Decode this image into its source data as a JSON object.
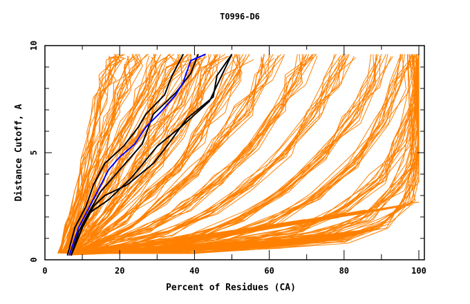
{
  "chart_data": {
    "type": "line",
    "title": "T0996-D6",
    "xlabel": "Percent of Residues (CA)",
    "ylabel": "Distance Cutoff, A",
    "xlim": [
      0,
      100
    ],
    "ylim": [
      0,
      10
    ],
    "x_ticks": [
      "0",
      "20",
      "40",
      "60",
      "80",
      "100"
    ],
    "y_ticks": [
      "0",
      "5",
      "10"
    ],
    "x_tick_values": [
      0,
      20,
      40,
      60,
      80,
      100
    ],
    "y_tick_values": [
      0,
      5,
      10
    ],
    "grid": false,
    "legend": "none",
    "colors": {
      "background_models": "#ff8000",
      "highlight_blue": "#0000ff",
      "highlight_black": "#000000"
    },
    "background_series_description": "Many orange GDT curves (all submitted models) spanning roughly x=4..100 at y from 0.3 to 9.6",
    "background_series": [
      {
        "x": [
          4,
          6,
          9,
          11,
          13,
          15,
          17,
          19,
          20
        ],
        "y": [
          0.3,
          1.5,
          3,
          4.5,
          6,
          7.5,
          8.5,
          9.2,
          9.6
        ]
      },
      {
        "x": [
          5,
          7,
          10,
          13,
          15,
          18,
          21,
          24,
          25
        ],
        "y": [
          0.3,
          1.2,
          2.6,
          4,
          5.2,
          6.7,
          8,
          9.1,
          9.6
        ]
      },
      {
        "x": [
          5,
          8,
          12,
          15,
          18,
          22,
          26,
          29,
          31
        ],
        "y": [
          0.3,
          1.3,
          2.6,
          3.8,
          5,
          6.4,
          7.8,
          9,
          9.6
        ]
      },
      {
        "x": [
          6,
          9,
          14,
          18,
          22,
          26,
          30,
          34,
          36
        ],
        "y": [
          0.3,
          1.1,
          2.4,
          3.6,
          4.9,
          6.2,
          7.6,
          9,
          9.6
        ]
      },
      {
        "x": [
          6,
          10,
          16,
          21,
          26,
          30,
          35,
          39,
          41
        ],
        "y": [
          0.3,
          1.0,
          2.2,
          3.4,
          4.7,
          6,
          7.4,
          8.9,
          9.6
        ]
      },
      {
        "x": [
          6,
          11,
          18,
          24,
          30,
          35,
          40,
          44,
          46
        ],
        "y": [
          0.3,
          0.9,
          2.1,
          3.3,
          4.6,
          5.9,
          7.3,
          8.8,
          9.6
        ]
      },
      {
        "x": [
          7,
          13,
          21,
          28,
          35,
          41,
          46,
          50,
          53
        ],
        "y": [
          0.3,
          0.9,
          1.9,
          3,
          4.3,
          5.7,
          7.1,
          8.6,
          9.6
        ]
      },
      {
        "x": [
          7,
          15,
          24,
          32,
          40,
          47,
          53,
          58,
          61
        ],
        "y": [
          0.3,
          0.8,
          1.7,
          2.8,
          4.1,
          5.5,
          7,
          8.5,
          9.6
        ]
      },
      {
        "x": [
          7,
          17,
          28,
          38,
          47,
          55,
          62,
          67,
          70
        ],
        "y": [
          0.3,
          0.7,
          1.5,
          2.5,
          3.8,
          5.2,
          6.8,
          8.4,
          9.6
        ]
      },
      {
        "x": [
          8,
          20,
          33,
          45,
          55,
          64,
          72,
          77,
          80
        ],
        "y": [
          0.3,
          0.7,
          1.3,
          2.2,
          3.5,
          5,
          6.7,
          8.3,
          9.6
        ]
      },
      {
        "x": [
          8,
          24,
          40,
          53,
          64,
          74,
          82,
          87,
          90
        ],
        "y": [
          0.3,
          0.6,
          1.1,
          2,
          3.2,
          4.8,
          6.5,
          8.2,
          9.6
        ]
      },
      {
        "x": [
          8,
          28,
          46,
          60,
          72,
          82,
          90,
          95,
          98
        ],
        "y": [
          0.3,
          0.55,
          0.95,
          1.7,
          2.9,
          4.5,
          6.4,
          8.1,
          9.6
        ]
      },
      {
        "x": [
          9,
          32,
          52,
          68,
          80,
          89,
          95,
          99,
          100
        ],
        "y": [
          0.3,
          0.5,
          0.85,
          1.4,
          2.4,
          3.8,
          5.5,
          7.5,
          9.6
        ]
      },
      {
        "x": [
          9,
          36,
          58,
          74,
          86,
          94,
          98,
          100,
          100
        ],
        "y": [
          0.3,
          0.45,
          0.75,
          1.2,
          2,
          3.2,
          4.6,
          6.5,
          9.6
        ]
      },
      {
        "x": [
          10,
          40,
          64,
          80,
          90,
          97,
          99,
          100,
          100
        ],
        "y": [
          0.3,
          0.42,
          0.65,
          1.0,
          1.7,
          2.7,
          3.8,
          5.5,
          9.6
        ]
      }
    ],
    "series": [
      {
        "name": "highlight-blue",
        "color": "#0000ff",
        "x": [
          6.5,
          9,
          12,
          15,
          17,
          20,
          24,
          27,
          31,
          35,
          37,
          39,
          43
        ],
        "y": [
          0.2,
          1.5,
          2.5,
          3.5,
          4.2,
          4.8,
          5.4,
          6.2,
          6.9,
          7.7,
          8.3,
          9.3,
          9.6
        ]
      },
      {
        "name": "highlight-black-1",
        "color": "#000000",
        "x": [
          6,
          8,
          11,
          13,
          16,
          21,
          25,
          27,
          32,
          34,
          37
        ],
        "y": [
          0.2,
          1.5,
          2.5,
          3.5,
          4.5,
          5.3,
          6.2,
          6.8,
          7.7,
          8.6,
          9.6
        ]
      },
      {
        "name": "highlight-black-2",
        "color": "#000000",
        "x": [
          7,
          9,
          12,
          15,
          20,
          26,
          29,
          35,
          39,
          41
        ],
        "y": [
          0.2,
          1.3,
          2.3,
          3.2,
          4.2,
          5.4,
          6.8,
          7.8,
          8.7,
          9.6
        ]
      },
      {
        "name": "highlight-black-3",
        "color": "#000000",
        "x": [
          7,
          10,
          13,
          16,
          22,
          29,
          33,
          38,
          45,
          46,
          50
        ],
        "y": [
          0.2,
          1.5,
          2.5,
          3.0,
          3.5,
          4.5,
          5.4,
          6.6,
          7.6,
          8.6,
          9.6
        ]
      },
      {
        "name": "highlight-black-4",
        "color": "#000000",
        "x": [
          7,
          10,
          12,
          17,
          23,
          30,
          37,
          44,
          50
        ],
        "y": [
          0.2,
          1.5,
          2.2,
          2.8,
          3.8,
          5.3,
          6.3,
          7.4,
          9.6
        ]
      }
    ]
  }
}
